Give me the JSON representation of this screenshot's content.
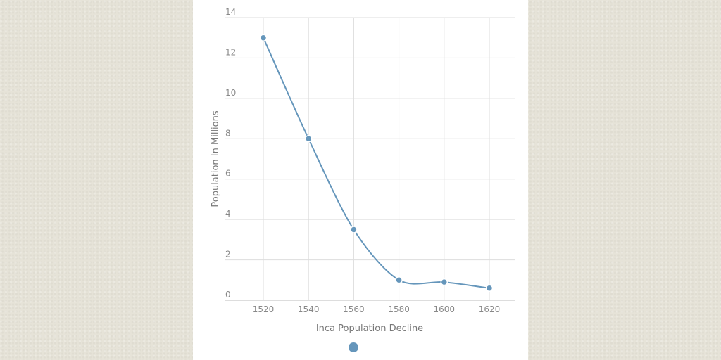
{
  "chart_data": {
    "type": "line",
    "title": "",
    "xlabel": "Inca Population Decline",
    "ylabel": "Population In Millions",
    "x": [
      1520,
      1540,
      1560,
      1580,
      1600,
      1620
    ],
    "x_ticks": [
      "1520",
      "1540",
      "1560",
      "1580",
      "1600",
      "1620"
    ],
    "y_ticks": [
      "0",
      "2",
      "4",
      "6",
      "8",
      "10",
      "12",
      "14"
    ],
    "ylim": [
      0,
      14
    ],
    "series": [
      {
        "values": [
          13,
          8,
          3.5,
          1,
          0.9,
          0.6
        ],
        "color": "#6596bb"
      }
    ],
    "grid": true,
    "legend": "bottom",
    "smooth": true
  }
}
